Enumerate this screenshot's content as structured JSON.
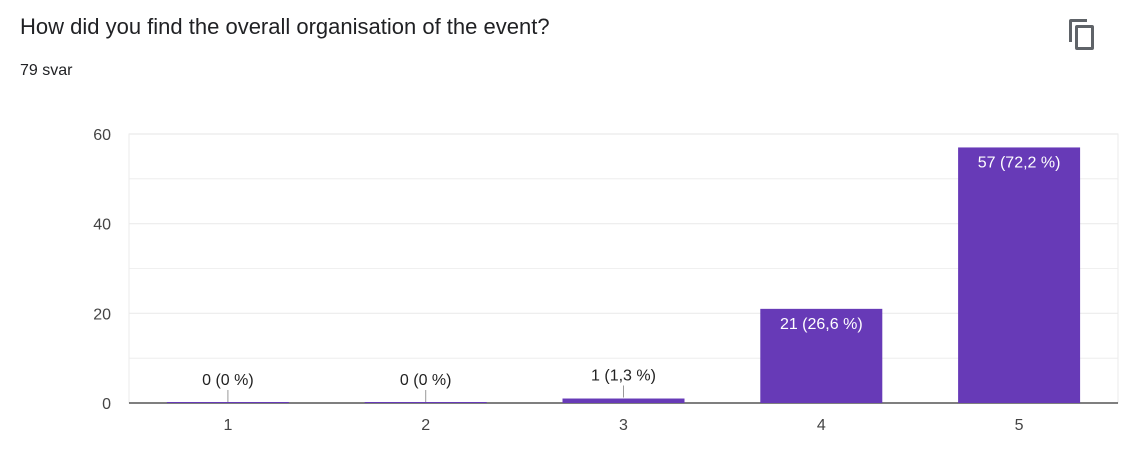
{
  "question": {
    "title": "How did you find the overall organisation of the event?",
    "response_count": "79 svar",
    "copy_icon": "copy-icon"
  },
  "colors": {
    "bar": "#673ab7",
    "grid": "#ebebeb",
    "axis": "#333333",
    "label_inside": "#ffffff",
    "label_outside": "#222222"
  },
  "chart_data": {
    "type": "bar",
    "categories": [
      "1",
      "2",
      "3",
      "4",
      "5"
    ],
    "values": [
      0,
      0,
      1,
      21,
      57
    ],
    "data_labels": [
      "0 (0 %)",
      "0 (0 %)",
      "1 (1,3 %)",
      "21 (26,6 %)",
      "57 (72,2 %)"
    ],
    "yticks": [
      "0",
      "20",
      "40",
      "60"
    ],
    "ylim": [
      0,
      60
    ],
    "xlabel": "",
    "ylabel": "",
    "grid": true,
    "legend": "none"
  }
}
